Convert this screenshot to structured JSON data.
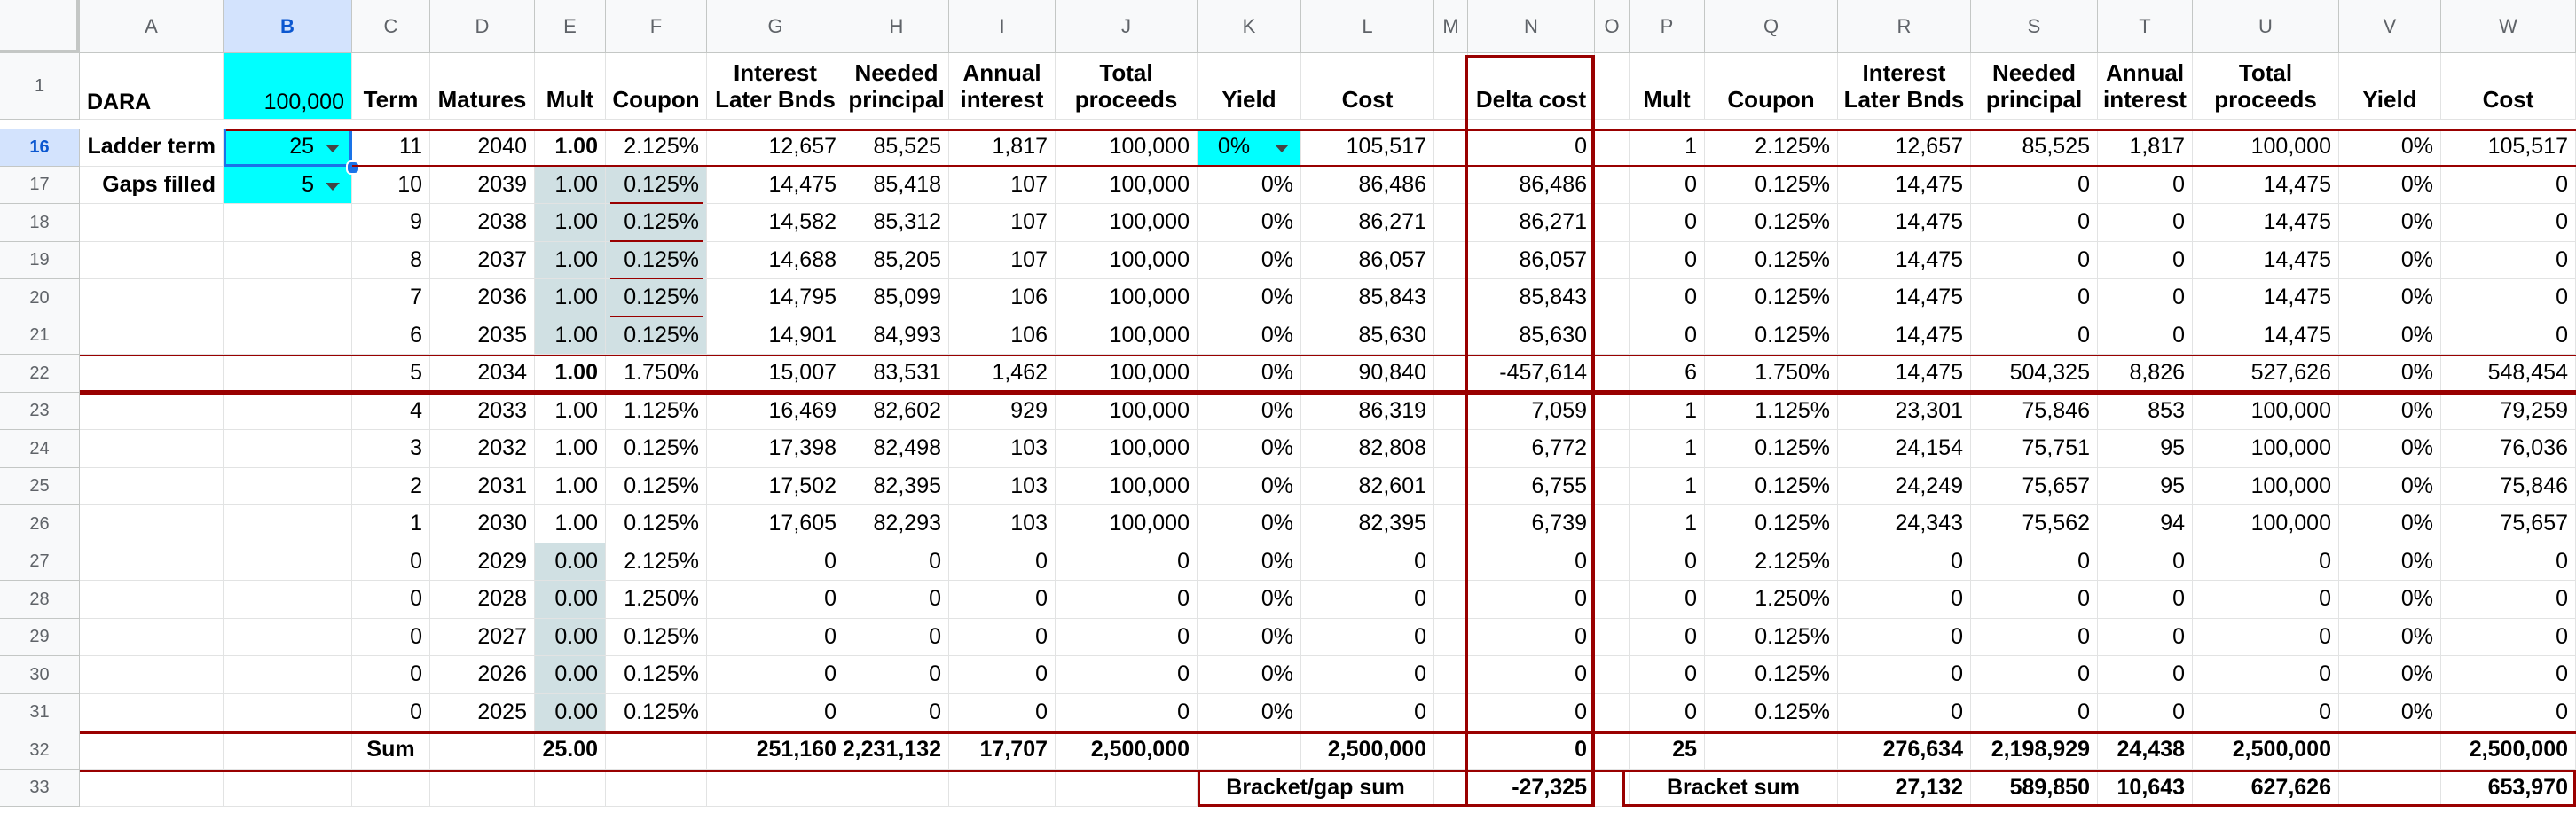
{
  "columns": [
    "A",
    "B",
    "C",
    "D",
    "E",
    "F",
    "G",
    "H",
    "I",
    "J",
    "K",
    "L",
    "M",
    "N",
    "O",
    "P",
    "Q",
    "R",
    "S",
    "T",
    "U",
    "V",
    "W"
  ],
  "selected_column": "B",
  "header_row": {
    "row_number": "1",
    "A": "DARA",
    "B": "100,000",
    "C": "Term",
    "D": "Matures",
    "E": "Mult",
    "F": "Coupon",
    "G": "Interest Later Bnds",
    "H": "Needed principal",
    "I": "Annual interest",
    "J": "Total proceeds",
    "K": "Yield",
    "L": "Cost",
    "N": "Delta cost",
    "P": "Mult",
    "Q": "Coupon",
    "R": "Interest Later Bnds",
    "S": "Needed principal",
    "T": "Annual interest",
    "U": "Total proceeds",
    "V": "Yield",
    "W": "Cost"
  },
  "controls": {
    "ladder_term_label": "Ladder term",
    "ladder_term_value": "25",
    "gaps_filled_label": "Gaps filled",
    "gaps_filled_value": "5",
    "yield_value": "0%"
  },
  "rows": [
    {
      "n": "16",
      "C": "11",
      "D": "2040",
      "E": "1.00",
      "F": "2.125%",
      "G": "12,657",
      "H": "85,525",
      "I": "1,817",
      "J": "100,000",
      "K": "0%",
      "L": "105,517",
      "N": "0",
      "P": "1",
      "Q": "2.125%",
      "R": "12,657",
      "S": "85,525",
      "T": "1,817",
      "U": "100,000",
      "V": "0%",
      "W": "105,517"
    },
    {
      "n": "17",
      "C": "10",
      "D": "2039",
      "E": "1.00",
      "F": "0.125%",
      "G": "14,475",
      "H": "85,418",
      "I": "107",
      "J": "100,000",
      "K": "0%",
      "L": "86,486",
      "N": "86,486",
      "P": "0",
      "Q": "0.125%",
      "R": "14,475",
      "S": "0",
      "T": "0",
      "U": "14,475",
      "V": "0%",
      "W": "0"
    },
    {
      "n": "18",
      "C": "9",
      "D": "2038",
      "E": "1.00",
      "F": "0.125%",
      "G": "14,582",
      "H": "85,312",
      "I": "107",
      "J": "100,000",
      "K": "0%",
      "L": "86,271",
      "N": "86,271",
      "P": "0",
      "Q": "0.125%",
      "R": "14,475",
      "S": "0",
      "T": "0",
      "U": "14,475",
      "V": "0%",
      "W": "0"
    },
    {
      "n": "19",
      "C": "8",
      "D": "2037",
      "E": "1.00",
      "F": "0.125%",
      "G": "14,688",
      "H": "85,205",
      "I": "107",
      "J": "100,000",
      "K": "0%",
      "L": "86,057",
      "N": "86,057",
      "P": "0",
      "Q": "0.125%",
      "R": "14,475",
      "S": "0",
      "T": "0",
      "U": "14,475",
      "V": "0%",
      "W": "0"
    },
    {
      "n": "20",
      "C": "7",
      "D": "2036",
      "E": "1.00",
      "F": "0.125%",
      "G": "14,795",
      "H": "85,099",
      "I": "106",
      "J": "100,000",
      "K": "0%",
      "L": "85,843",
      "N": "85,843",
      "P": "0",
      "Q": "0.125%",
      "R": "14,475",
      "S": "0",
      "T": "0",
      "U": "14,475",
      "V": "0%",
      "W": "0"
    },
    {
      "n": "21",
      "C": "6",
      "D": "2035",
      "E": "1.00",
      "F": "0.125%",
      "G": "14,901",
      "H": "84,993",
      "I": "106",
      "J": "100,000",
      "K": "0%",
      "L": "85,630",
      "N": "85,630",
      "P": "0",
      "Q": "0.125%",
      "R": "14,475",
      "S": "0",
      "T": "0",
      "U": "14,475",
      "V": "0%",
      "W": "0"
    },
    {
      "n": "22",
      "C": "5",
      "D": "2034",
      "E": "1.00",
      "F": "1.750%",
      "G": "15,007",
      "H": "83,531",
      "I": "1,462",
      "J": "100,000",
      "K": "0%",
      "L": "90,840",
      "N": "-457,614",
      "P": "6",
      "Q": "1.750%",
      "R": "14,475",
      "S": "504,325",
      "T": "8,826",
      "U": "527,626",
      "V": "0%",
      "W": "548,454"
    },
    {
      "n": "23",
      "C": "4",
      "D": "2033",
      "E": "1.00",
      "F": "1.125%",
      "G": "16,469",
      "H": "82,602",
      "I": "929",
      "J": "100,000",
      "K": "0%",
      "L": "86,319",
      "N": "7,059",
      "P": "1",
      "Q": "1.125%",
      "R": "23,301",
      "S": "75,846",
      "T": "853",
      "U": "100,000",
      "V": "0%",
      "W": "79,259"
    },
    {
      "n": "24",
      "C": "3",
      "D": "2032",
      "E": "1.00",
      "F": "0.125%",
      "G": "17,398",
      "H": "82,498",
      "I": "103",
      "J": "100,000",
      "K": "0%",
      "L": "82,808",
      "N": "6,772",
      "P": "1",
      "Q": "0.125%",
      "R": "24,154",
      "S": "75,751",
      "T": "95",
      "U": "100,000",
      "V": "0%",
      "W": "76,036"
    },
    {
      "n": "25",
      "C": "2",
      "D": "2031",
      "E": "1.00",
      "F": "0.125%",
      "G": "17,502",
      "H": "82,395",
      "I": "103",
      "J": "100,000",
      "K": "0%",
      "L": "82,601",
      "N": "6,755",
      "P": "1",
      "Q": "0.125%",
      "R": "24,249",
      "S": "75,657",
      "T": "95",
      "U": "100,000",
      "V": "0%",
      "W": "75,846"
    },
    {
      "n": "26",
      "C": "1",
      "D": "2030",
      "E": "1.00",
      "F": "0.125%",
      "G": "17,605",
      "H": "82,293",
      "I": "103",
      "J": "100,000",
      "K": "0%",
      "L": "82,395",
      "N": "6,739",
      "P": "1",
      "Q": "0.125%",
      "R": "24,343",
      "S": "75,562",
      "T": "94",
      "U": "100,000",
      "V": "0%",
      "W": "75,657"
    },
    {
      "n": "27",
      "C": "0",
      "D": "2029",
      "E": "0.00",
      "F": "2.125%",
      "G": "0",
      "H": "0",
      "I": "0",
      "J": "0",
      "K": "0%",
      "L": "0",
      "N": "0",
      "P": "0",
      "Q": "2.125%",
      "R": "0",
      "S": "0",
      "T": "0",
      "U": "0",
      "V": "0%",
      "W": "0"
    },
    {
      "n": "28",
      "C": "0",
      "D": "2028",
      "E": "0.00",
      "F": "1.250%",
      "G": "0",
      "H": "0",
      "I": "0",
      "J": "0",
      "K": "0%",
      "L": "0",
      "N": "0",
      "P": "0",
      "Q": "1.250%",
      "R": "0",
      "S": "0",
      "T": "0",
      "U": "0",
      "V": "0%",
      "W": "0"
    },
    {
      "n": "29",
      "C": "0",
      "D": "2027",
      "E": "0.00",
      "F": "0.125%",
      "G": "0",
      "H": "0",
      "I": "0",
      "J": "0",
      "K": "0%",
      "L": "0",
      "N": "0",
      "P": "0",
      "Q": "0.125%",
      "R": "0",
      "S": "0",
      "T": "0",
      "U": "0",
      "V": "0%",
      "W": "0"
    },
    {
      "n": "30",
      "C": "0",
      "D": "2026",
      "E": "0.00",
      "F": "0.125%",
      "G": "0",
      "H": "0",
      "I": "0",
      "J": "0",
      "K": "0%",
      "L": "0",
      "N": "0",
      "P": "0",
      "Q": "0.125%",
      "R": "0",
      "S": "0",
      "T": "0",
      "U": "0",
      "V": "0%",
      "W": "0"
    },
    {
      "n": "31",
      "C": "0",
      "D": "2025",
      "E": "0.00",
      "F": "0.125%",
      "G": "0",
      "H": "0",
      "I": "0",
      "J": "0",
      "K": "0%",
      "L": "0",
      "N": "0",
      "P": "0",
      "Q": "0.125%",
      "R": "0",
      "S": "0",
      "T": "0",
      "U": "0",
      "V": "0%",
      "W": "0"
    }
  ],
  "sum_row": {
    "n": "32",
    "C": "Sum",
    "E": "25.00",
    "G": "251,160",
    "H": "2,231,132",
    "I": "17,707",
    "J": "2,500,000",
    "L": "2,500,000",
    "N": "0",
    "P": "25",
    "R": "276,634",
    "S": "2,198,929",
    "T": "24,438",
    "U": "2,500,000",
    "W": "2,500,000"
  },
  "bracket_row": {
    "n": "33",
    "gap_label": "Bracket/gap sum",
    "gap_value": "-27,325",
    "bracket_label": "Bracket sum",
    "R": "27,132",
    "S": "589,850",
    "T": "10,643",
    "U": "627,626",
    "W": "653,970"
  },
  "colors": {
    "cyan": "#00ffff",
    "grey_fill": "#d0e0e3",
    "dark_red": "#990000",
    "selection_blue": "#d3e3fd"
  }
}
